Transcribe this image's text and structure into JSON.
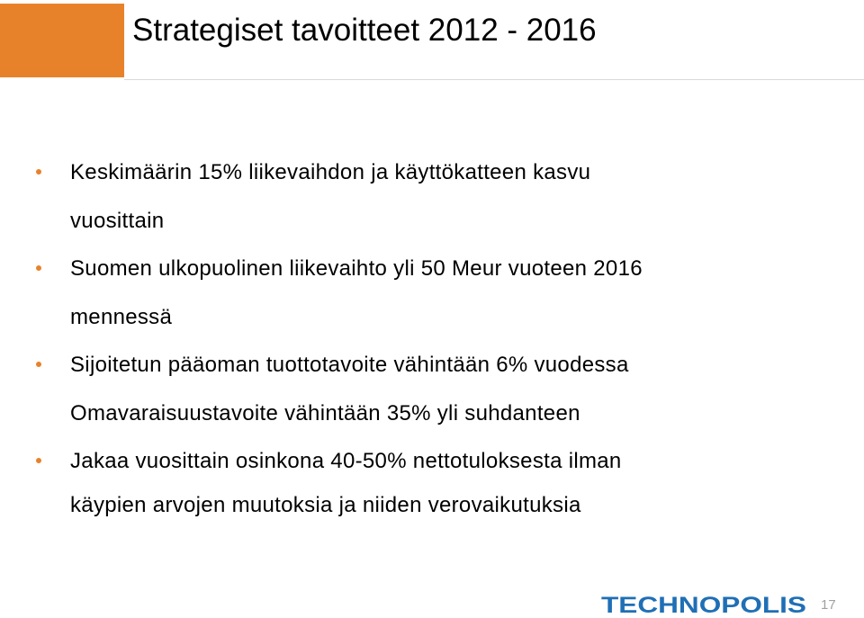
{
  "slide": {
    "title": "Strategiset tavoitteet 2012 - 2016",
    "accent_color": "#E8822A",
    "lines": [
      {
        "text": "Keskimäärin 15% liikevaihdon ja käyttökatteen kasvu",
        "bullet": true
      },
      {
        "text": "vuosittain",
        "bullet": false
      },
      {
        "text": "Suomen ulkopuolinen liikevaihto yli 50 Meur vuoteen 2016",
        "bullet": true
      },
      {
        "text": "mennessä",
        "bullet": false
      },
      {
        "text": "Sijoitetun pääoman tuottotavoite vähintään 6% vuodessa",
        "bullet": true
      },
      {
        "text": "Omavaraisuustavoite vähintään 35% yli suhdanteen",
        "bullet": false
      },
      {
        "text": "Jakaa vuosittain osinkona 40-50% nettotuloksesta ilman",
        "bullet": true
      },
      {
        "text": "käypien arvojen muutoksia ja niiden verovaikutuksia",
        "bullet": false
      }
    ]
  },
  "footer": {
    "logo_text": "TECHNOPOLIS",
    "logo_color": "#1F6FB5",
    "page_number": "17"
  }
}
